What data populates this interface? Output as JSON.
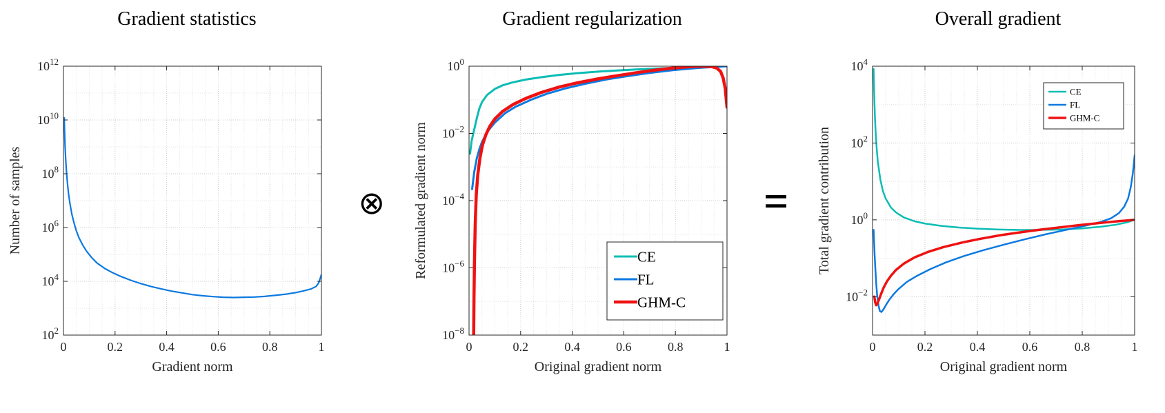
{
  "operators": {
    "otimes": "⊗",
    "equals": "="
  },
  "colors": {
    "ce": "#0bbcb4",
    "fl": "#0c79e0",
    "ghm_c": "#ee1212",
    "axis": "#262626",
    "grid_major": "#cdcdcd",
    "grid_minor": "#e4e4e4"
  },
  "chart_data": [
    {
      "type": "line",
      "title": "Gradient statistics",
      "xlabel": "Gradient norm",
      "ylabel": "Number of samples",
      "xlim": [
        0,
        1
      ],
      "xticks": [
        0,
        0.2,
        0.4,
        0.6,
        0.8,
        1
      ],
      "xtick_labels": [
        "0",
        "0.2",
        "0.4",
        "0.6",
        "0.8",
        "1"
      ],
      "yscale": "log",
      "ylim_exp": [
        2,
        12
      ],
      "ytick_exps": [
        2,
        4,
        6,
        8,
        10,
        12
      ],
      "grid": true,
      "legend": null,
      "series": [
        {
          "name": "samples",
          "color": "#0c79e0",
          "width": 2.2,
          "points": [
            [
              0.003,
              12000000000.0
            ],
            [
              0.004,
              5000000000.0
            ],
            [
              0.006,
              1200000000.0
            ],
            [
              0.009,
              300000000.0
            ],
            [
              0.012,
              110000000.0
            ],
            [
              0.016,
              40000000.0
            ],
            [
              0.02,
              17000000.0
            ],
            [
              0.026,
              7000000.0
            ],
            [
              0.033,
              3000000.0
            ],
            [
              0.04,
              1600000.0
            ],
            [
              0.05,
              750000.0
            ],
            [
              0.06,
              420000.0
            ],
            [
              0.075,
              220000.0
            ],
            [
              0.09,
              130000.0
            ],
            [
              0.11,
              75000.0
            ],
            [
              0.13,
              48000.0
            ],
            [
              0.16,
              30000.0
            ],
            [
              0.19,
              21000.0
            ],
            [
              0.22,
              15500.0
            ],
            [
              0.26,
              11000.0
            ],
            [
              0.3,
              8200.0
            ],
            [
              0.34,
              6400.0
            ],
            [
              0.38,
              5200.0
            ],
            [
              0.42,
              4300.0
            ],
            [
              0.46,
              3700.0
            ],
            [
              0.5,
              3200.0
            ],
            [
              0.54,
              2900.0
            ],
            [
              0.58,
              2700.0
            ],
            [
              0.62,
              2550.0
            ],
            [
              0.66,
              2500.0
            ],
            [
              0.7,
              2550.0
            ],
            [
              0.74,
              2600.0
            ],
            [
              0.78,
              2750.0
            ],
            [
              0.82,
              3000.0
            ],
            [
              0.86,
              3300.0
            ],
            [
              0.9,
              3800.0
            ],
            [
              0.93,
              4400.0
            ],
            [
              0.96,
              5200.0
            ],
            [
              0.98,
              6500.0
            ],
            [
              0.99,
              9000.0
            ],
            [
              1.0,
              18000.0
            ]
          ]
        }
      ]
    },
    {
      "type": "line",
      "title": "Gradient regularization",
      "xlabel": "Original gradient norm",
      "ylabel": "Reformulated gradient norm",
      "xlim": [
        0,
        1
      ],
      "xticks": [
        0,
        0.2,
        0.4,
        0.6,
        0.8,
        1
      ],
      "xtick_labels": [
        "0",
        "0.2",
        "0.4",
        "0.6",
        "0.8",
        "1"
      ],
      "yscale": "log",
      "ylim_exp": [
        -8,
        0
      ],
      "ytick_exps": [
        0,
        -2,
        -4,
        -6,
        -8
      ],
      "grid": true,
      "legend": {
        "position": "south-east",
        "size": "large",
        "entries": [
          "CE",
          "FL",
          "GHM-C"
        ]
      },
      "series": [
        {
          "name": "CE",
          "color": "#0bbcb4",
          "width": 3,
          "points": [
            [
              0.004,
              0.0025
            ],
            [
              0.01,
              0.006
            ],
            [
              0.02,
              0.013
            ],
            [
              0.03,
              0.028
            ],
            [
              0.04,
              0.055
            ],
            [
              0.05,
              0.085
            ],
            [
              0.07,
              0.14
            ],
            [
              0.1,
              0.21
            ],
            [
              0.13,
              0.27
            ],
            [
              0.17,
              0.33
            ],
            [
              0.22,
              0.4
            ],
            [
              0.28,
              0.47
            ],
            [
              0.35,
              0.55
            ],
            [
              0.42,
              0.62
            ],
            [
              0.5,
              0.69
            ],
            [
              0.58,
              0.75
            ],
            [
              0.66,
              0.81
            ],
            [
              0.75,
              0.87
            ],
            [
              0.84,
              0.92
            ],
            [
              0.92,
              0.96
            ],
            [
              1.0,
              1.0
            ]
          ]
        },
        {
          "name": "FL",
          "color": "#0c79e0",
          "width": 3,
          "points": [
            [
              0.012,
              0.00022
            ],
            [
              0.02,
              0.0007
            ],
            [
              0.03,
              0.0018
            ],
            [
              0.04,
              0.0034
            ],
            [
              0.05,
              0.0055
            ],
            [
              0.07,
              0.011
            ],
            [
              0.1,
              0.021
            ],
            [
              0.14,
              0.04
            ],
            [
              0.18,
              0.062
            ],
            [
              0.24,
              0.1
            ],
            [
              0.3,
              0.15
            ],
            [
              0.37,
              0.215
            ],
            [
              0.45,
              0.3
            ],
            [
              0.53,
              0.4
            ],
            [
              0.61,
              0.5
            ],
            [
              0.7,
              0.63
            ],
            [
              0.79,
              0.76
            ],
            [
              0.88,
              0.88
            ],
            [
              0.95,
              0.95
            ],
            [
              1.0,
              1.0
            ]
          ]
        },
        {
          "name": "GHM-C",
          "color": "#ee1212",
          "width": 4.5,
          "points": [
            [
              0.018,
              1e-08
            ],
            [
              0.019,
              1e-07
            ],
            [
              0.021,
              1.5e-06
            ],
            [
              0.024,
              2e-05
            ],
            [
              0.028,
              0.00015
            ],
            [
              0.034,
              0.0006
            ],
            [
              0.042,
              0.0018
            ],
            [
              0.052,
              0.0045
            ],
            [
              0.065,
              0.009
            ],
            [
              0.08,
              0.016
            ],
            [
              0.1,
              0.027
            ],
            [
              0.13,
              0.045
            ],
            [
              0.17,
              0.072
            ],
            [
              0.22,
              0.11
            ],
            [
              0.28,
              0.165
            ],
            [
              0.35,
              0.24
            ],
            [
              0.42,
              0.32
            ],
            [
              0.5,
              0.42
            ],
            [
              0.58,
              0.53
            ],
            [
              0.66,
              0.66
            ],
            [
              0.73,
              0.78
            ],
            [
              0.79,
              0.88
            ],
            [
              0.84,
              0.95
            ],
            [
              0.88,
              0.99
            ],
            [
              0.91,
              1.0
            ],
            [
              0.94,
              0.97
            ],
            [
              0.96,
              0.88
            ],
            [
              0.975,
              0.7
            ],
            [
              0.985,
              0.45
            ],
            [
              0.993,
              0.22
            ],
            [
              1.0,
              0.06
            ]
          ]
        }
      ]
    },
    {
      "type": "line",
      "title": "Overall gradient",
      "xlabel": "Original gradient norm",
      "ylabel": "Total gradient contribution",
      "xlim": [
        0,
        1
      ],
      "xticks": [
        0,
        0.2,
        0.4,
        0.6,
        0.8,
        1
      ],
      "xtick_labels": [
        "0",
        "0.2",
        "0.4",
        "0.6",
        "0.8",
        "1"
      ],
      "yscale": "log",
      "ylim_exp": [
        -3,
        4
      ],
      "ytick_exps": [
        4,
        2,
        0,
        -2
      ],
      "grid": true,
      "legend": {
        "position": "north-east",
        "size": "small",
        "entries": [
          "CE",
          "FL",
          "GHM-C"
        ]
      },
      "series": [
        {
          "name": "CE",
          "color": "#0bbcb4",
          "width": 2.5,
          "points": [
            [
              0.004,
              8500.0
            ],
            [
              0.005,
              4000.0
            ],
            [
              0.007,
              1300.0
            ],
            [
              0.009,
              500.0
            ],
            [
              0.012,
              180.0
            ],
            [
              0.016,
              70
            ],
            [
              0.02,
              33
            ],
            [
              0.03,
              11
            ],
            [
              0.04,
              5.5
            ],
            [
              0.05,
              3.6
            ],
            [
              0.07,
              2.1
            ],
            [
              0.09,
              1.55
            ],
            [
              0.12,
              1.15
            ],
            [
              0.16,
              0.92
            ],
            [
              0.2,
              0.8
            ],
            [
              0.26,
              0.7
            ],
            [
              0.33,
              0.63
            ],
            [
              0.4,
              0.59
            ],
            [
              0.48,
              0.56
            ],
            [
              0.56,
              0.545
            ],
            [
              0.64,
              0.545
            ],
            [
              0.72,
              0.56
            ],
            [
              0.8,
              0.6
            ],
            [
              0.87,
              0.66
            ],
            [
              0.93,
              0.75
            ],
            [
              0.97,
              0.86
            ],
            [
              1.0,
              1.0
            ]
          ]
        },
        {
          "name": "FL",
          "color": "#0c79e0",
          "width": 2.5,
          "points": [
            [
              0.004,
              0.55
            ],
            [
              0.006,
              0.26
            ],
            [
              0.008,
              0.12
            ],
            [
              0.011,
              0.05
            ],
            [
              0.014,
              0.022
            ],
            [
              0.018,
              0.01
            ],
            [
              0.023,
              0.0058
            ],
            [
              0.028,
              0.0042
            ],
            [
              0.034,
              0.004
            ],
            [
              0.042,
              0.0047
            ],
            [
              0.052,
              0.0062
            ],
            [
              0.065,
              0.0085
            ],
            [
              0.08,
              0.0115
            ],
            [
              0.1,
              0.016
            ],
            [
              0.13,
              0.024
            ],
            [
              0.17,
              0.035
            ],
            [
              0.22,
              0.052
            ],
            [
              0.28,
              0.078
            ],
            [
              0.35,
              0.115
            ],
            [
              0.42,
              0.16
            ],
            [
              0.5,
              0.225
            ],
            [
              0.58,
              0.31
            ],
            [
              0.66,
              0.42
            ],
            [
              0.74,
              0.55
            ],
            [
              0.81,
              0.7
            ],
            [
              0.87,
              0.88
            ],
            [
              0.91,
              1.1
            ],
            [
              0.94,
              1.5
            ],
            [
              0.96,
              2.2
            ],
            [
              0.975,
              3.6
            ],
            [
              0.985,
              7
            ],
            [
              0.993,
              16
            ],
            [
              1.0,
              48
            ]
          ]
        },
        {
          "name": "GHM-C",
          "color": "#ee1212",
          "width": 3.5,
          "points": [
            [
              0.007,
              0.01
            ],
            [
              0.01,
              0.0072
            ],
            [
              0.014,
              0.006
            ],
            [
              0.018,
              0.0065
            ],
            [
              0.024,
              0.0082
            ],
            [
              0.032,
              0.0115
            ],
            [
              0.042,
              0.017
            ],
            [
              0.055,
              0.025
            ],
            [
              0.07,
              0.035
            ],
            [
              0.09,
              0.05
            ],
            [
              0.12,
              0.073
            ],
            [
              0.16,
              0.105
            ],
            [
              0.21,
              0.145
            ],
            [
              0.27,
              0.195
            ],
            [
              0.34,
              0.255
            ],
            [
              0.41,
              0.32
            ],
            [
              0.49,
              0.4
            ],
            [
              0.57,
              0.48
            ],
            [
              0.65,
              0.565
            ],
            [
              0.73,
              0.655
            ],
            [
              0.81,
              0.755
            ],
            [
              0.88,
              0.845
            ],
            [
              0.94,
              0.925
            ],
            [
              1.0,
              1.0
            ]
          ]
        }
      ]
    }
  ]
}
